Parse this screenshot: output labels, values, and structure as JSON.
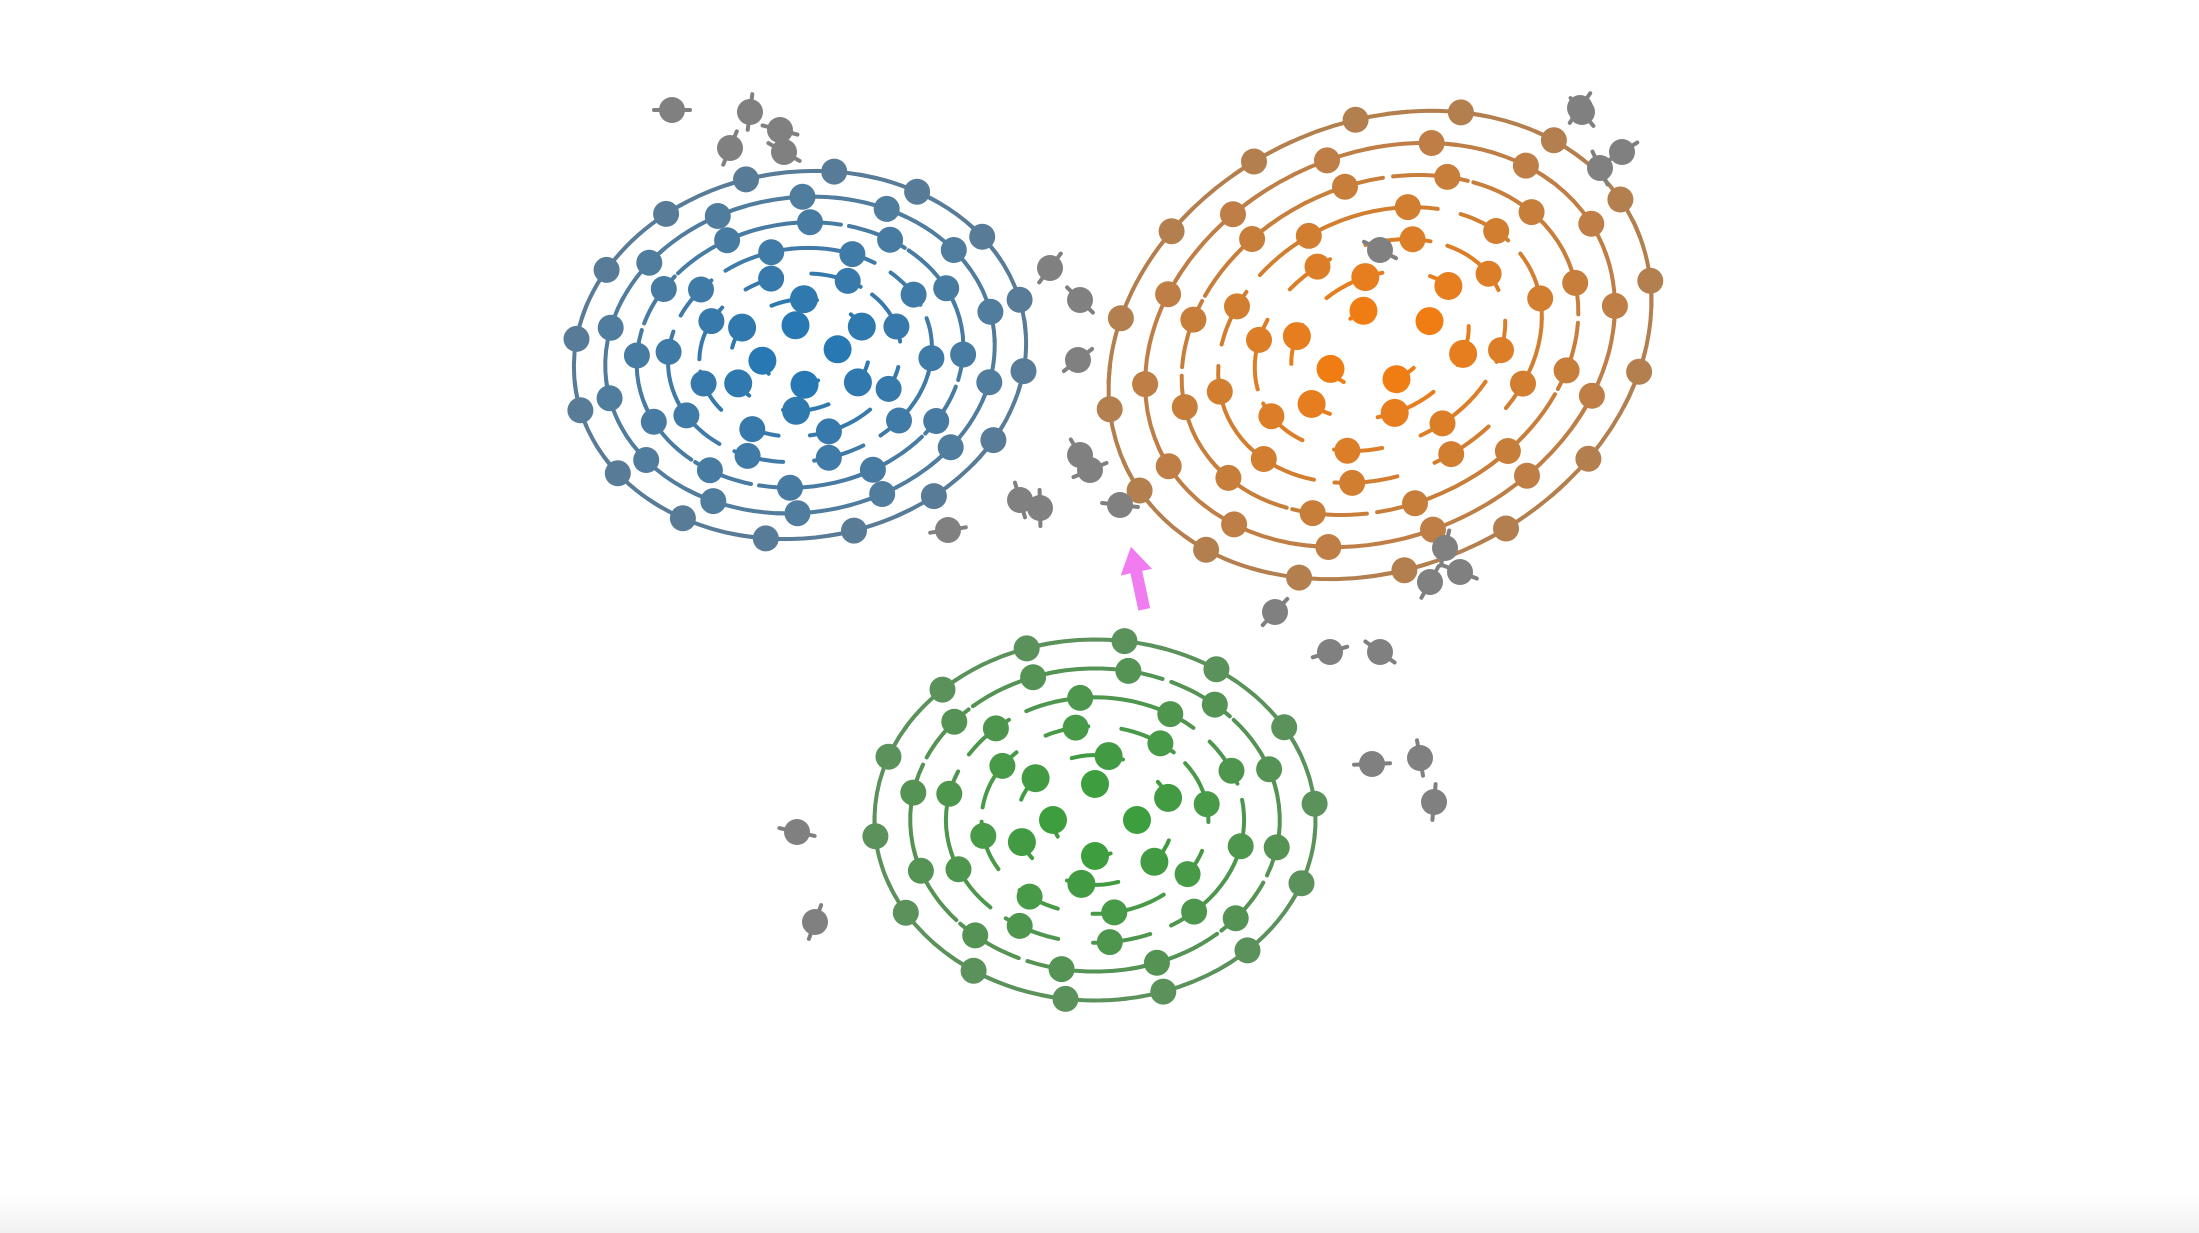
{
  "visualization": {
    "kind": "swirling particle clusters",
    "clusters": [
      {
        "id": "blue",
        "color": "#2878b4",
        "ring_count": 7,
        "particles_per_ring": [
          4,
          6,
          8,
          10,
          12,
          14,
          16
        ]
      },
      {
        "id": "orange",
        "color": "#f07d14",
        "ring_count": 7,
        "particles_per_ring": [
          4,
          6,
          8,
          10,
          12,
          14,
          16
        ]
      },
      {
        "id": "green",
        "color": "#3c9e3c",
        "ring_count": 6,
        "particles_per_ring": [
          4,
          6,
          8,
          10,
          12,
          14
        ]
      }
    ],
    "stray_color": "#808080",
    "pointer": {
      "color": "#f07cf0",
      "icon": "arrow-up-icon"
    }
  }
}
